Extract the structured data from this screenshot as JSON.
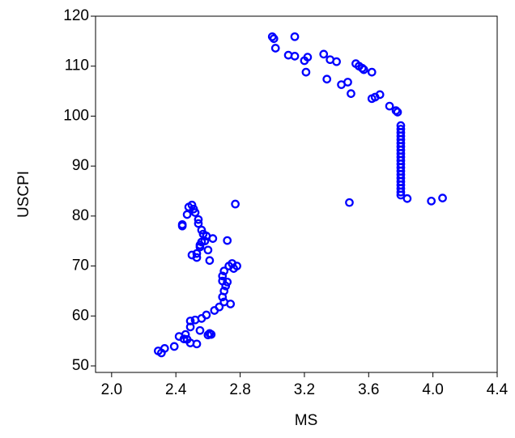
{
  "chart_data": {
    "type": "scatter",
    "xlabel": "MS",
    "ylabel": "USCPI",
    "color": "#0000ff",
    "x": [
      3.0,
      3.01,
      3.14,
      3.02,
      3.1,
      3.14,
      3.2,
      3.22,
      3.21,
      3.32,
      3.36,
      3.4,
      3.34,
      3.43,
      3.47,
      3.49,
      3.52,
      3.54,
      3.56,
      3.57,
      3.62,
      3.62,
      3.64,
      3.67,
      3.73,
      3.77,
      3.78,
      3.8,
      3.8,
      3.8,
      3.8,
      3.8,
      3.8,
      3.8,
      3.8,
      3.8,
      3.8,
      3.8,
      3.8,
      3.8,
      3.8,
      3.8,
      3.8,
      3.8,
      3.8,
      3.8,
      3.8,
      3.8,
      3.84,
      3.99,
      4.06,
      3.48,
      2.29,
      2.31,
      2.33,
      2.39,
      2.42,
      2.45,
      2.47,
      2.46,
      2.49,
      2.53,
      2.49,
      2.49,
      2.52,
      2.55,
      2.56,
      2.59,
      2.6,
      2.61,
      2.62,
      2.64,
      2.67,
      2.7,
      2.74,
      2.69,
      2.7,
      2.71,
      2.72,
      2.69,
      2.7,
      2.73,
      2.75,
      2.76,
      2.78,
      2.69,
      2.5,
      2.53,
      2.53,
      2.55,
      2.56,
      2.55,
      2.58,
      2.6,
      2.61,
      2.63,
      2.72,
      2.77,
      2.44,
      2.44,
      2.47,
      2.48,
      2.5,
      2.51,
      2.52,
      2.54,
      2.54,
      2.56,
      2.57,
      2.59
    ],
    "values": [
      115.9,
      115.5,
      115.9,
      113.6,
      112.2,
      112.0,
      111.1,
      111.8,
      108.8,
      112.4,
      111.3,
      110.9,
      107.4,
      106.3,
      106.8,
      104.5,
      110.5,
      110.0,
      109.6,
      109.3,
      108.8,
      103.5,
      103.8,
      104.3,
      102.0,
      101.1,
      100.8,
      84.2,
      84.8,
      85.5,
      86.2,
      86.9,
      87.6,
      88.3,
      89.0,
      89.7,
      90.4,
      91.1,
      91.8,
      92.5,
      93.2,
      93.9,
      94.6,
      95.3,
      96.0,
      96.7,
      97.4,
      98.1,
      83.5,
      83.0,
      83.6,
      82.7,
      53.0,
      52.6,
      53.5,
      53.9,
      55.9,
      55.4,
      55.3,
      56.3,
      54.6,
      54.4,
      57.8,
      59.0,
      59.2,
      57.1,
      59.5,
      60.2,
      56.2,
      56.5,
      56.3,
      61.1,
      61.8,
      62.8,
      62.4,
      63.8,
      65.0,
      66.0,
      66.8,
      68.0,
      69.0,
      70.0,
      70.5,
      69.5,
      70.0,
      67.0,
      72.2,
      71.7,
      72.5,
      74.2,
      74.8,
      73.8,
      75.0,
      73.2,
      71.1,
      75.5,
      75.1,
      82.4,
      78.3,
      78.0,
      80.3,
      81.8,
      82.2,
      81.4,
      80.7,
      79.3,
      78.5,
      77.2,
      76.4,
      76.0
    ],
    "xlim": [
      1.9,
      4.4
    ],
    "xticks": [
      {
        "value": 2.0,
        "label": "2.0"
      },
      2.4,
      2.8,
      3.2,
      3.6,
      {
        "value": 4.0,
        "label": "4.0"
      },
      4.4
    ],
    "ylim": [
      48.7,
      120
    ],
    "yticks": [
      50,
      60,
      70,
      80,
      90,
      100,
      110,
      120
    ]
  }
}
